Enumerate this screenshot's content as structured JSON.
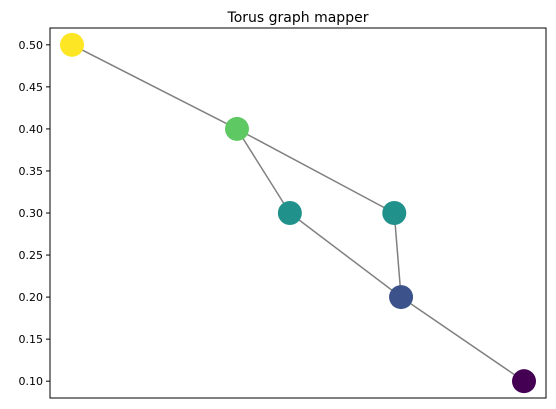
{
  "chart_data": {
    "type": "scatter",
    "title": "Torus graph mapper",
    "xlabel": "",
    "ylabel": "",
    "ylim": [
      0.08,
      0.52
    ],
    "xlim": [
      0,
      1
    ],
    "x_ticks_shown": false,
    "grid": false,
    "y_ticks": [
      {
        "value": 0.1,
        "label": "0.10"
      },
      {
        "value": 0.15,
        "label": "0.15"
      },
      {
        "value": 0.2,
        "label": "0.20"
      },
      {
        "value": 0.25,
        "label": "0.25"
      },
      {
        "value": 0.3,
        "label": "0.30"
      },
      {
        "value": 0.35,
        "label": "0.35"
      },
      {
        "value": 0.4,
        "label": "0.40"
      },
      {
        "value": 0.45,
        "label": "0.45"
      },
      {
        "value": 0.5,
        "label": "0.50"
      }
    ],
    "nodes": [
      {
        "id": 0,
        "x": 0.0,
        "y": 0.5,
        "color": "#fde725"
      },
      {
        "id": 1,
        "x": 0.365,
        "y": 0.4,
        "color": "#5ec962"
      },
      {
        "id": 2,
        "x": 0.482,
        "y": 0.3,
        "color": "#21918c"
      },
      {
        "id": 3,
        "x": 0.713,
        "y": 0.3,
        "color": "#21918c"
      },
      {
        "id": 4,
        "x": 0.728,
        "y": 0.2,
        "color": "#3b528b"
      },
      {
        "id": 5,
        "x": 1.0,
        "y": 0.1,
        "color": "#440154"
      }
    ],
    "edges": [
      [
        0,
        1
      ],
      [
        1,
        2
      ],
      [
        1,
        3
      ],
      [
        2,
        4
      ],
      [
        3,
        4
      ],
      [
        4,
        5
      ]
    ],
    "edge_color": "#808080"
  }
}
